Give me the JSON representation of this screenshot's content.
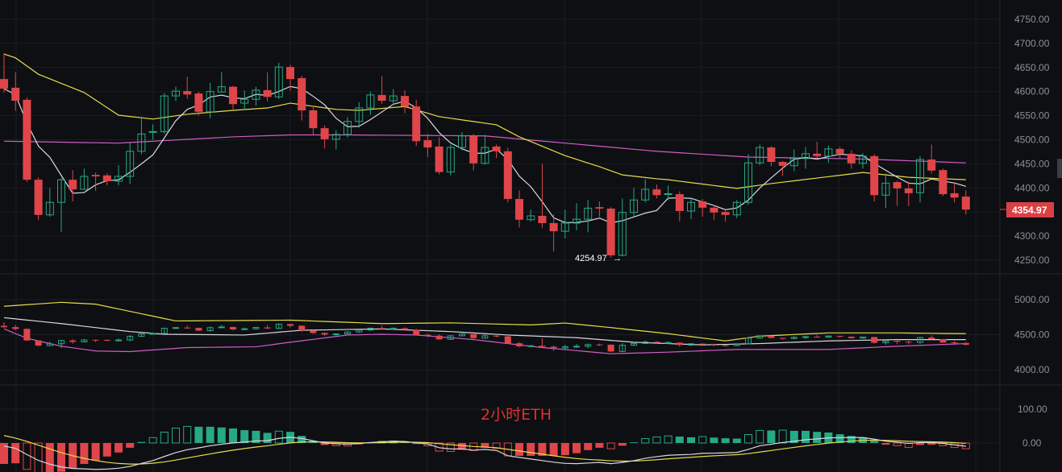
{
  "chart_data": {
    "type": "candlestick",
    "title": "",
    "watermark": "2小时ETH",
    "colors": {
      "up": "#26a985",
      "down": "#e0454a",
      "ma_fast": "#d8d8e0",
      "ma_mid": "#e6dc4a",
      "ma_slow": "#d05ec8",
      "background": "#0e0f12",
      "grid": "#1b1d22"
    },
    "grid": true,
    "price_axis": {
      "ticks": [
        "4750.00",
        "4700.00",
        "4650.00",
        "4600.00",
        "4550.00",
        "4500.00",
        "4450.00",
        "4400.00",
        "4300.00",
        "4250.00"
      ],
      "ylim": [
        4250,
        4750
      ]
    },
    "last_price": "4354.97",
    "low_marker": "4254.97",
    "candles_ohlc": [
      [
        4626,
        4680,
        4598,
        4606
      ],
      [
        4608,
        4640,
        4560,
        4581
      ],
      [
        4583,
        4588,
        4412,
        4417
      ],
      [
        4417,
        4422,
        4333,
        4344
      ],
      [
        4344,
        4400,
        4340,
        4370
      ],
      [
        4370,
        4420,
        4309,
        4417
      ],
      [
        4417,
        4437,
        4372,
        4397
      ],
      [
        4397,
        4440,
        4398,
        4424
      ],
      [
        4427,
        4432,
        4394,
        4424
      ],
      [
        4426,
        4430,
        4405,
        4414
      ],
      [
        4414,
        4447,
        4405,
        4424
      ],
      [
        4424,
        4494,
        4408,
        4476
      ],
      [
        4476,
        4548,
        4470,
        4512
      ],
      [
        4516,
        4532,
        4500,
        4517
      ],
      [
        4517,
        4597,
        4512,
        4591
      ],
      [
        4591,
        4610,
        4580,
        4601
      ],
      [
        4601,
        4631,
        4585,
        4594
      ],
      [
        4596,
        4600,
        4550,
        4558
      ],
      [
        4558,
        4618,
        4545,
        4600
      ],
      [
        4599,
        4640,
        4600,
        4610
      ],
      [
        4610,
        4612,
        4563,
        4574
      ],
      [
        4576,
        4602,
        4562,
        4584
      ],
      [
        4584,
        4610,
        4571,
        4603
      ],
      [
        4603,
        4640,
        4580,
        4589
      ],
      [
        4589,
        4660,
        4585,
        4651
      ],
      [
        4651,
        4656,
        4602,
        4626
      ],
      [
        4628,
        4633,
        4540,
        4561
      ],
      [
        4561,
        4570,
        4510,
        4524
      ],
      [
        4524,
        4530,
        4482,
        4501
      ],
      [
        4501,
        4520,
        4480,
        4511
      ],
      [
        4511,
        4547,
        4505,
        4538
      ],
      [
        4538,
        4578,
        4525,
        4566
      ],
      [
        4566,
        4600,
        4552,
        4593
      ],
      [
        4593,
        4632,
        4575,
        4581
      ],
      [
        4581,
        4605,
        4572,
        4591
      ],
      [
        4591,
        4603,
        4555,
        4569
      ],
      [
        4569,
        4583,
        4487,
        4497
      ],
      [
        4499,
        4512,
        4464,
        4484
      ],
      [
        4486,
        4505,
        4428,
        4433
      ],
      [
        4433,
        4490,
        4426,
        4484
      ],
      [
        4484,
        4516,
        4478,
        4508
      ],
      [
        4508,
        4512,
        4436,
        4451
      ],
      [
        4451,
        4510,
        4448,
        4484
      ],
      [
        4486,
        4490,
        4462,
        4476
      ],
      [
        4476,
        4483,
        4370,
        4377
      ],
      [
        4377,
        4395,
        4318,
        4334
      ],
      [
        4334,
        4355,
        4330,
        4342
      ],
      [
        4342,
        4450,
        4317,
        4327
      ],
      [
        4327,
        4345,
        4268,
        4310
      ],
      [
        4310,
        4355,
        4295,
        4327
      ],
      [
        4327,
        4368,
        4312,
        4335
      ],
      [
        4335,
        4375,
        4308,
        4358
      ],
      [
        4360,
        4372,
        4340,
        4357
      ],
      [
        4357,
        4360,
        4254.97,
        4260
      ],
      [
        4260,
        4378,
        4258,
        4349
      ],
      [
        4349,
        4400,
        4340,
        4375
      ],
      [
        4375,
        4418,
        4370,
        4397
      ],
      [
        4397,
        4407,
        4378,
        4385
      ],
      [
        4387,
        4405,
        4375,
        4388
      ],
      [
        4387,
        4393,
        4330,
        4352
      ],
      [
        4352,
        4380,
        4335,
        4370
      ],
      [
        4372,
        4377,
        4340,
        4359
      ],
      [
        4359,
        4365,
        4333,
        4349
      ],
      [
        4350,
        4355,
        4330,
        4344
      ],
      [
        4344,
        4375,
        4337,
        4370
      ],
      [
        4370,
        4470,
        4365,
        4452
      ],
      [
        4452,
        4490,
        4447,
        4484
      ],
      [
        4484,
        4487,
        4445,
        4454
      ],
      [
        4454,
        4456,
        4425,
        4446
      ],
      [
        4446,
        4480,
        4435,
        4461
      ],
      [
        4461,
        4485,
        4440,
        4471
      ],
      [
        4471,
        4496,
        4460,
        4466
      ],
      [
        4466,
        4488,
        4452,
        4481
      ],
      [
        4481,
        4485,
        4460,
        4471
      ],
      [
        4471,
        4478,
        4440,
        4451
      ],
      [
        4451,
        4472,
        4440,
        4466
      ],
      [
        4466,
        4470,
        4372,
        4385
      ],
      [
        4385,
        4430,
        4358,
        4410
      ],
      [
        4412,
        4415,
        4363,
        4399
      ],
      [
        4399,
        4413,
        4362,
        4389
      ],
      [
        4390,
        4466,
        4370,
        4459
      ],
      [
        4459,
        4490,
        4430,
        4436
      ],
      [
        4437,
        4440,
        4383,
        4387
      ],
      [
        4389,
        4410,
        4370,
        4380
      ],
      [
        4382,
        4395,
        4345,
        4354.97
      ]
    ],
    "ma_fast_period": 5,
    "ma_mid_points": [
      [
        0,
        4678
      ],
      [
        1,
        4670
      ],
      [
        3,
        4636
      ],
      [
        7,
        4598
      ],
      [
        10,
        4551
      ],
      [
        13,
        4543
      ],
      [
        16,
        4553
      ],
      [
        20,
        4561
      ],
      [
        23,
        4566
      ],
      [
        25,
        4576
      ],
      [
        29,
        4563
      ],
      [
        31,
        4561
      ],
      [
        35,
        4569
      ],
      [
        38,
        4548
      ],
      [
        43,
        4531
      ],
      [
        45,
        4506
      ],
      [
        49,
        4467
      ],
      [
        52,
        4444
      ],
      [
        54,
        4427
      ],
      [
        57,
        4419
      ],
      [
        58,
        4417
      ],
      [
        64,
        4399
      ],
      [
        67,
        4409
      ],
      [
        75,
        4432
      ],
      [
        79,
        4422
      ],
      [
        84,
        4417
      ]
    ],
    "ma_slow_points": [
      [
        0,
        4497
      ],
      [
        10,
        4493
      ],
      [
        20,
        4506
      ],
      [
        25,
        4510
      ],
      [
        30,
        4510
      ],
      [
        42,
        4508
      ],
      [
        49,
        4493
      ],
      [
        57,
        4476
      ],
      [
        65,
        4464
      ],
      [
        75,
        4460
      ],
      [
        84,
        4452
      ]
    ],
    "overlay_panel": {
      "ticks": [
        "5000.00",
        "4500.00",
        "4000.00"
      ],
      "ylim": [
        4000,
        5000
      ],
      "upper_band": [
        [
          0,
          4905
        ],
        [
          5,
          4962
        ],
        [
          8,
          4935
        ],
        [
          15,
          4696
        ],
        [
          25,
          4707
        ],
        [
          33,
          4658
        ],
        [
          39,
          4669
        ],
        [
          46,
          4639
        ],
        [
          49,
          4666
        ],
        [
          53,
          4601
        ],
        [
          58,
          4514
        ],
        [
          63,
          4411
        ],
        [
          66,
          4479
        ],
        [
          72,
          4525
        ],
        [
          78,
          4525
        ],
        [
          84,
          4514
        ]
      ],
      "middle_band": [
        [
          0,
          4742
        ],
        [
          5,
          4658
        ],
        [
          11,
          4544
        ],
        [
          14,
          4506
        ],
        [
          21,
          4495
        ],
        [
          26,
          4563
        ],
        [
          33,
          4582
        ],
        [
          39,
          4544
        ],
        [
          44,
          4495
        ],
        [
          50,
          4457
        ],
        [
          55,
          4392
        ],
        [
          61,
          4354
        ],
        [
          66,
          4373
        ],
        [
          72,
          4411
        ],
        [
          78,
          4430
        ],
        [
          84,
          4430
        ]
      ],
      "lower_band": [
        [
          0,
          4582
        ],
        [
          2,
          4449
        ],
        [
          5,
          4335
        ],
        [
          8,
          4267
        ],
        [
          11,
          4259
        ],
        [
          16,
          4316
        ],
        [
          22,
          4327
        ],
        [
          25,
          4392
        ],
        [
          30,
          4495
        ],
        [
          33,
          4506
        ],
        [
          36,
          4495
        ],
        [
          41,
          4430
        ],
        [
          47,
          4316
        ],
        [
          53,
          4228
        ],
        [
          58,
          4251
        ],
        [
          64,
          4289
        ],
        [
          72,
          4289
        ],
        [
          78,
          4335
        ],
        [
          84,
          4373
        ]
      ]
    },
    "macd_panel": {
      "ticks": [
        "100.00",
        "0.00"
      ],
      "histogram": [
        -62,
        -60,
        -78,
        -90,
        -90,
        -85,
        -75,
        -62,
        -52,
        -40,
        -28,
        -14,
        3,
        16,
        32,
        44,
        49,
        48,
        48,
        46,
        43,
        38,
        36,
        30,
        35,
        33,
        21,
        6,
        -6,
        -8,
        -9,
        -4,
        2,
        5,
        6,
        4,
        -3,
        -8,
        -24,
        -25,
        -20,
        -22,
        -14,
        -16,
        -38,
        -38,
        -38,
        -38,
        -38,
        -36,
        -30,
        -21,
        -14,
        -17,
        -8,
        2,
        13,
        18,
        21,
        19,
        17,
        19,
        16,
        14,
        13,
        25,
        37,
        37,
        38,
        36,
        36,
        33,
        31,
        26,
        21,
        17,
        6,
        -5,
        -8,
        -13,
        -6,
        -5,
        -8,
        -13,
        -17
      ],
      "dea_first": 22
    }
  }
}
